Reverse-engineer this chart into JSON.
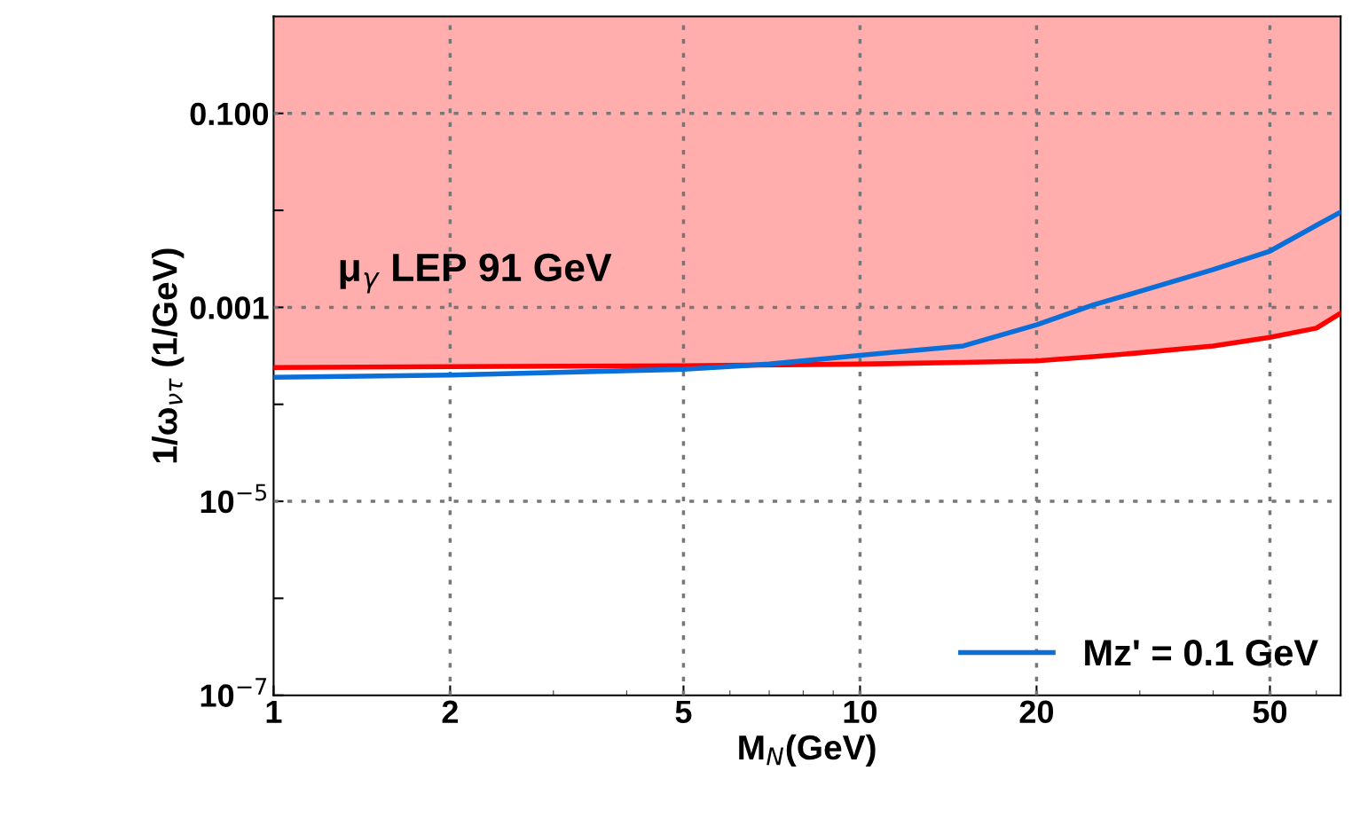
{
  "chart_data": {
    "type": "line",
    "log": "xy",
    "xlabel": "M$_{N}$(GeV)",
    "ylabel": "1/ω$_{ντ}$ (1/GeV)",
    "xlim": [
      1,
      66
    ],
    "ylim": [
      1e-07,
      1
    ],
    "xticks": [
      1,
      2,
      5,
      10,
      20,
      50
    ],
    "yticks": [
      {
        "value": 1e-07,
        "label": "10$^{−7}$"
      },
      {
        "value": 1e-06,
        "label": null
      },
      {
        "value": 1e-05,
        "label": "10$^{−5}$"
      },
      {
        "value": 0.0001,
        "label": null
      },
      {
        "value": 0.001,
        "label": "0.001"
      },
      {
        "value": 0.01,
        "label": null
      },
      {
        "value": 0.1,
        "label": "0.100"
      }
    ],
    "grid": true,
    "legend": "bottom right",
    "line_style": "solid",
    "marker": "none",
    "annotations": [
      "μ$_{γ}$ LEP 91 GeV"
    ],
    "series": [
      {
        "color": "#ff0000",
        "x": [
          1,
          5,
          10,
          15,
          20,
          25,
          30,
          40,
          50,
          60,
          66
        ],
        "values": [
          0.00024,
          0.00025,
          0.00026,
          0.00027,
          0.00028,
          0.00031,
          0.00034,
          0.0004,
          0.00049,
          0.00061,
          0.00087
        ],
        "lower": [
          0.00024,
          0.00025,
          0.00026,
          0.00027,
          0.00028,
          0.00031,
          0.00034,
          0.0004,
          0.00049,
          0.00061,
          0.00087
        ],
        "upper": [
          1,
          1,
          1,
          1,
          1,
          1,
          1,
          1,
          1,
          1,
          1
        ]
      },
      {
        "name": "Mz' = 0.1 GeV",
        "color": "#0a6fd8",
        "x": [
          1,
          2,
          5,
          7,
          10,
          15,
          20,
          25,
          30,
          40,
          50,
          60,
          66
        ],
        "values": [
          0.00019,
          0.0002,
          0.00023,
          0.00026,
          0.00032,
          0.0004,
          0.00066,
          0.00106,
          0.00146,
          0.00245,
          0.0038,
          0.007,
          0.0096
        ]
      }
    ]
  }
}
